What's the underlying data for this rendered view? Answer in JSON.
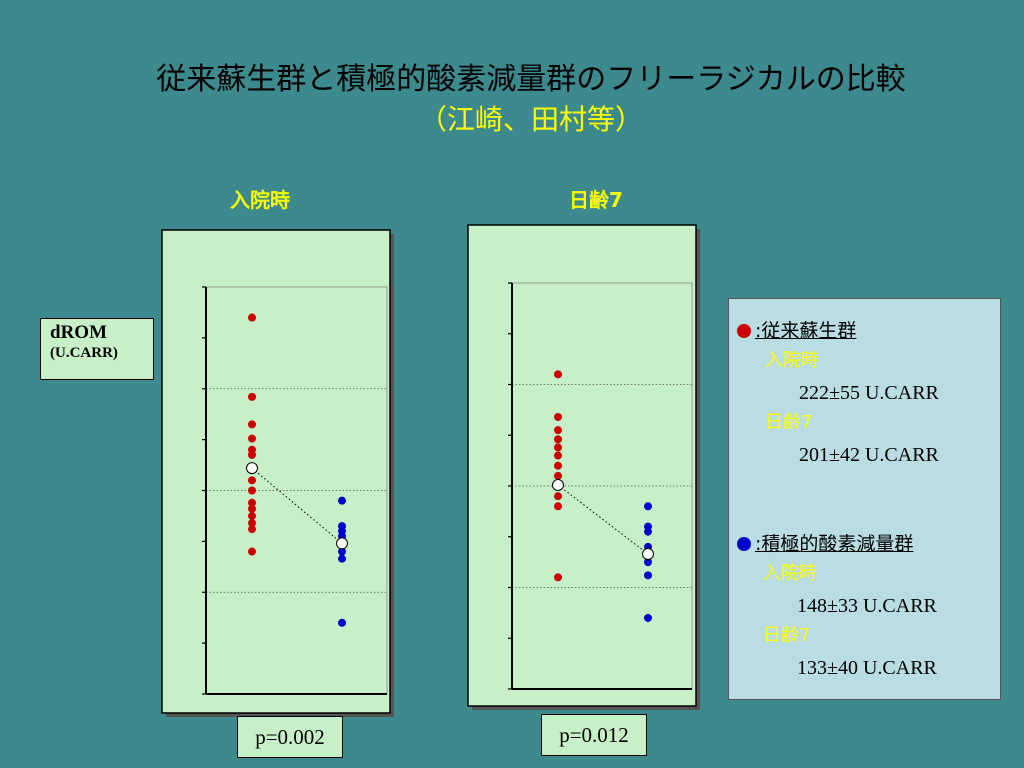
{
  "title": "従来蘇生群と積極的酸素減量群のフリーラジカルの比較",
  "subtitle": "（江崎、田村等）",
  "y_axis_label": {
    "line1": "dROM",
    "line2": "(U.CARR)"
  },
  "colors": {
    "background": "#3c8a8e",
    "panel_fill": "#c8f0c8",
    "conventional": "#cc0000",
    "aggressive": "#0000cc",
    "mean_marker": "#ffffff",
    "label_yellow": "#ffff00"
  },
  "chart_data": [
    {
      "type": "scatter",
      "title": "入院時",
      "ylim": [
        0,
        400
      ],
      "grid": "horizontal dotted",
      "groups": [
        "従来蘇生群",
        "積極的酸素減量群"
      ],
      "series": [
        {
          "name": "従来蘇生群",
          "values": [
            370,
            292,
            265,
            251,
            240,
            235,
            210,
            200,
            188,
            182,
            175,
            168,
            162,
            140
          ],
          "mean": 222
        },
        {
          "name": "積極的酸素減量群",
          "values": [
            190,
            165,
            160,
            155,
            150,
            140,
            133,
            70
          ],
          "mean": 148
        }
      ],
      "p_value": "p=0.002"
    },
    {
      "type": "scatter",
      "title": "日齢7",
      "ylim": [
        0,
        400
      ],
      "grid": "horizontal dotted",
      "groups": [
        "従来蘇生群",
        "積極的酸素減量群"
      ],
      "series": [
        {
          "name": "従来蘇生群",
          "values": [
            310,
            268,
            255,
            246,
            238,
            230,
            220,
            210,
            200,
            190,
            180,
            110
          ],
          "mean": 201
        },
        {
          "name": "積極的酸素減量群",
          "values": [
            180,
            160,
            155,
            140,
            125,
            112,
            70
          ],
          "mean": 133
        }
      ],
      "p_value": "p=0.012"
    }
  ],
  "legend": {
    "group1": {
      "name": "従来蘇生群",
      "marker": "●",
      "prefix": ":",
      "t1_label": "入院時",
      "t1_value": "222±55 U.CARR",
      "t2_label": "日齢7",
      "t2_value": "201±42 U.CARR"
    },
    "group2": {
      "name": "積極的酸素減量群",
      "marker": "●",
      "prefix": ":",
      "t1_label": "入院時",
      "t1_value": "148±33 U.CARR",
      "t2_label": "日齢7",
      "t2_value": "133±40 U.CARR"
    }
  }
}
